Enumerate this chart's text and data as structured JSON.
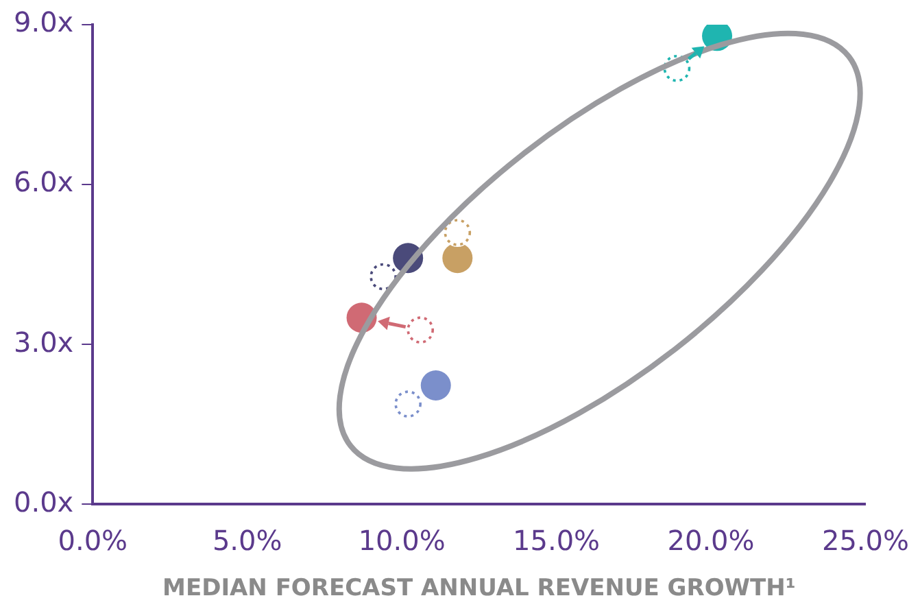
{
  "chart_data": {
    "type": "scatter",
    "xlabel": "MEDIAN FORECAST ANNUAL REVENUE GROWTH¹",
    "xlim": [
      0,
      25
    ],
    "ylim": [
      0,
      9
    ],
    "xticks": [
      {
        "value": 0,
        "label": "0.0%"
      },
      {
        "value": 5,
        "label": "5.0%"
      },
      {
        "value": 10,
        "label": "10.0%"
      },
      {
        "value": 15,
        "label": "15.0%"
      },
      {
        "value": 20,
        "label": "20.0%"
      },
      {
        "value": 25,
        "label": "25.0%"
      }
    ],
    "yticks": [
      {
        "value": 0,
        "label": "0.0x"
      },
      {
        "value": 3,
        "label": "3.0x"
      },
      {
        "value": 6,
        "label": "6.0x"
      },
      {
        "value": 9,
        "label": "9.0x"
      }
    ],
    "grid": false,
    "legend": false,
    "marker": "circle",
    "series": [
      {
        "x": [
          20.2,
          10.2,
          11.8,
          8.7,
          11.1
        ],
        "values": [
          8.79,
          4.62,
          4.62,
          3.5,
          2.23
        ],
        "colors": [
          "#1fb5b0",
          "#4a4a7a",
          "#c8a064",
          "#d06a74",
          "#7b8fcb"
        ]
      },
      {
        "x": [
          18.9,
          9.4,
          11.8,
          10.6,
          10.2
        ],
        "values": [
          8.18,
          4.27,
          5.1,
          3.27,
          1.88
        ],
        "colors": [
          "#1fb5b0",
          "#4a4a7a",
          "#c8a064",
          "#d06a74",
          "#7b8fcb"
        ],
        "line_style": "dotted"
      }
    ]
  }
}
